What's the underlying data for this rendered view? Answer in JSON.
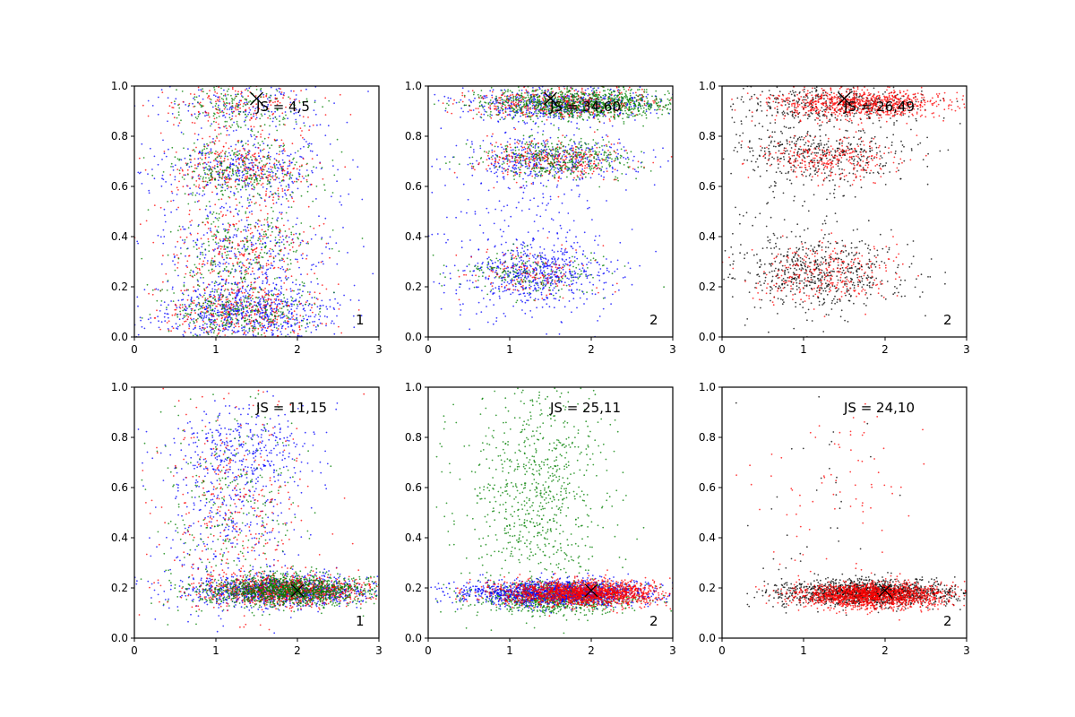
{
  "chart_data": [
    {
      "type": "scatter",
      "title": "",
      "xlabel": "",
      "ylabel": "",
      "xlim": [
        0,
        3
      ],
      "ylim": [
        0,
        1
      ],
      "xticks": [
        "0",
        "1",
        "2",
        "3"
      ],
      "yticks": [
        "0.0",
        "0.2",
        "0.4",
        "0.6",
        "0.8",
        "1.0"
      ],
      "grid": false,
      "annotation": "JS = 4,5",
      "index_label": "1",
      "marker_x": {
        "x": 1.5,
        "y": 0.95
      },
      "series": [
        {
          "color": "#0000ff",
          "points_approx": 1600,
          "clusters": [
            {
              "cx": 1.35,
              "cy": 0.1,
              "sx": 0.55,
              "sy": 0.06,
              "frac": 0.45
            },
            {
              "cx": 1.35,
              "cy": 0.35,
              "sx": 0.55,
              "sy": 0.08,
              "frac": 0.15
            },
            {
              "cx": 1.35,
              "cy": 0.66,
              "sx": 0.55,
              "sy": 0.06,
              "frac": 0.2
            },
            {
              "cx": 1.3,
              "cy": 0.92,
              "sx": 0.5,
              "sy": 0.05,
              "frac": 0.1
            },
            {
              "cx": 1.4,
              "cy": 0.5,
              "sx": 0.6,
              "sy": 0.3,
              "frac": 0.1
            }
          ]
        },
        {
          "color": "#ff0000",
          "points_approx": 1100,
          "clusters": [
            {
              "cx": 1.3,
              "cy": 0.1,
              "sx": 0.45,
              "sy": 0.06,
              "frac": 0.3
            },
            {
              "cx": 1.3,
              "cy": 0.35,
              "sx": 0.45,
              "sy": 0.08,
              "frac": 0.2
            },
            {
              "cx": 1.3,
              "cy": 0.66,
              "sx": 0.45,
              "sy": 0.06,
              "frac": 0.25
            },
            {
              "cx": 1.3,
              "cy": 0.92,
              "sx": 0.45,
              "sy": 0.05,
              "frac": 0.15
            },
            {
              "cx": 1.3,
              "cy": 0.5,
              "sx": 0.55,
              "sy": 0.3,
              "frac": 0.1
            }
          ]
        },
        {
          "color": "#008000",
          "points_approx": 1100,
          "clusters": [
            {
              "cx": 1.3,
              "cy": 0.1,
              "sx": 0.45,
              "sy": 0.06,
              "frac": 0.3
            },
            {
              "cx": 1.3,
              "cy": 0.35,
              "sx": 0.45,
              "sy": 0.08,
              "frac": 0.2
            },
            {
              "cx": 1.3,
              "cy": 0.66,
              "sx": 0.45,
              "sy": 0.06,
              "frac": 0.25
            },
            {
              "cx": 1.3,
              "cy": 0.92,
              "sx": 0.45,
              "sy": 0.05,
              "frac": 0.15
            },
            {
              "cx": 1.3,
              "cy": 0.5,
              "sx": 0.55,
              "sy": 0.3,
              "frac": 0.1
            }
          ]
        }
      ]
    },
    {
      "type": "scatter",
      "title": "",
      "xlabel": "",
      "ylabel": "",
      "xlim": [
        0,
        3
      ],
      "ylim": [
        0,
        1
      ],
      "xticks": [
        "0",
        "1",
        "2",
        "3"
      ],
      "yticks": [
        "0.0",
        "0.2",
        "0.4",
        "0.6",
        "0.8",
        "1.0"
      ],
      "grid": false,
      "annotation": "JS = 34,60",
      "index_label": "2",
      "marker_x": {
        "x": 1.5,
        "y": 0.95
      },
      "series": [
        {
          "color": "#0000ff",
          "points_approx": 1700,
          "clusters": [
            {
              "cx": 1.3,
              "cy": 0.25,
              "sx": 0.45,
              "sy": 0.06,
              "frac": 0.3
            },
            {
              "cx": 1.5,
              "cy": 0.71,
              "sx": 0.5,
              "sy": 0.04,
              "frac": 0.2
            },
            {
              "cx": 1.6,
              "cy": 0.93,
              "sx": 0.6,
              "sy": 0.03,
              "frac": 0.3
            },
            {
              "cx": 1.2,
              "cy": 0.5,
              "sx": 0.6,
              "sy": 0.3,
              "frac": 0.2
            }
          ]
        },
        {
          "color": "#ff0000",
          "points_approx": 900,
          "clusters": [
            {
              "cx": 1.3,
              "cy": 0.25,
              "sx": 0.4,
              "sy": 0.05,
              "frac": 0.15
            },
            {
              "cx": 1.5,
              "cy": 0.71,
              "sx": 0.45,
              "sy": 0.04,
              "frac": 0.35
            },
            {
              "cx": 1.6,
              "cy": 0.93,
              "sx": 0.55,
              "sy": 0.03,
              "frac": 0.5
            }
          ]
        },
        {
          "color": "#008000",
          "points_approx": 1600,
          "clusters": [
            {
              "cx": 1.3,
              "cy": 0.25,
              "sx": 0.45,
              "sy": 0.05,
              "frac": 0.12
            },
            {
              "cx": 1.6,
              "cy": 0.71,
              "sx": 0.5,
              "sy": 0.04,
              "frac": 0.25
            },
            {
              "cx": 1.9,
              "cy": 0.93,
              "sx": 0.6,
              "sy": 0.03,
              "frac": 0.63
            }
          ]
        }
      ]
    },
    {
      "type": "scatter",
      "title": "",
      "xlabel": "",
      "ylabel": "",
      "xlim": [
        0,
        3
      ],
      "ylim": [
        0,
        1
      ],
      "xticks": [
        "0",
        "1",
        "2",
        "3"
      ],
      "yticks": [
        "0.0",
        "0.2",
        "0.4",
        "0.6",
        "0.8",
        "1.0"
      ],
      "grid": false,
      "annotation": "JS = 26,49",
      "index_label": "2",
      "marker_x": {
        "x": 1.5,
        "y": 0.95
      },
      "series": [
        {
          "color": "#000000",
          "points_approx": 1500,
          "clusters": [
            {
              "cx": 1.2,
              "cy": 0.25,
              "sx": 0.55,
              "sy": 0.07,
              "frac": 0.35
            },
            {
              "cx": 1.3,
              "cy": 0.73,
              "sx": 0.55,
              "sy": 0.05,
              "frac": 0.25
            },
            {
              "cx": 1.4,
              "cy": 0.93,
              "sx": 0.6,
              "sy": 0.04,
              "frac": 0.25
            },
            {
              "cx": 1.0,
              "cy": 0.5,
              "sx": 0.5,
              "sy": 0.3,
              "frac": 0.15
            }
          ]
        },
        {
          "color": "#ff0000",
          "points_approx": 1400,
          "clusters": [
            {
              "cx": 1.3,
              "cy": 0.25,
              "sx": 0.45,
              "sy": 0.06,
              "frac": 0.2
            },
            {
              "cx": 1.3,
              "cy": 0.71,
              "sx": 0.4,
              "sy": 0.04,
              "frac": 0.2
            },
            {
              "cx": 1.7,
              "cy": 0.93,
              "sx": 0.55,
              "sy": 0.03,
              "frac": 0.6
            }
          ]
        }
      ]
    },
    {
      "type": "scatter",
      "title": "",
      "xlabel": "",
      "ylabel": "",
      "xlim": [
        0,
        3
      ],
      "ylim": [
        0,
        1
      ],
      "xticks": [
        "0",
        "1",
        "2",
        "3"
      ],
      "yticks": [
        "0.0",
        "0.2",
        "0.4",
        "0.6",
        "0.8",
        "1.0"
      ],
      "grid": false,
      "annotation": "JS = 11,15",
      "index_label": "1",
      "marker_x": {
        "x": 2.0,
        "y": 0.19
      },
      "series": [
        {
          "color": "#0000ff",
          "points_approx": 1700,
          "clusters": [
            {
              "cx": 1.8,
              "cy": 0.19,
              "sx": 0.55,
              "sy": 0.03,
              "frac": 0.6
            },
            {
              "cx": 1.4,
              "cy": 0.75,
              "sx": 0.4,
              "sy": 0.08,
              "frac": 0.15
            },
            {
              "cx": 1.2,
              "cy": 0.5,
              "sx": 0.5,
              "sy": 0.25,
              "frac": 0.25
            }
          ]
        },
        {
          "color": "#ff0000",
          "points_approx": 1300,
          "clusters": [
            {
              "cx": 1.9,
              "cy": 0.19,
              "sx": 0.5,
              "sy": 0.03,
              "frac": 0.75
            },
            {
              "cx": 1.2,
              "cy": 0.5,
              "sx": 0.5,
              "sy": 0.25,
              "frac": 0.25
            }
          ]
        },
        {
          "color": "#008000",
          "points_approx": 1500,
          "clusters": [
            {
              "cx": 1.9,
              "cy": 0.19,
              "sx": 0.5,
              "sy": 0.03,
              "frac": 0.8
            },
            {
              "cx": 1.2,
              "cy": 0.5,
              "sx": 0.5,
              "sy": 0.25,
              "frac": 0.2
            }
          ]
        }
      ]
    },
    {
      "type": "scatter",
      "title": "",
      "xlabel": "",
      "ylabel": "",
      "xlim": [
        0,
        3
      ],
      "ylim": [
        0,
        1
      ],
      "xticks": [
        "0",
        "1",
        "2",
        "3"
      ],
      "yticks": [
        "0.0",
        "0.2",
        "0.4",
        "0.6",
        "0.8",
        "1.0"
      ],
      "grid": false,
      "annotation": "JS = 25,11",
      "index_label": "2",
      "marker_x": {
        "x": 2.0,
        "y": 0.19
      },
      "series": [
        {
          "color": "#008000",
          "points_approx": 1700,
          "clusters": [
            {
              "cx": 1.6,
              "cy": 0.16,
              "sx": 0.5,
              "sy": 0.03,
              "frac": 0.55
            },
            {
              "cx": 1.3,
              "cy": 0.6,
              "sx": 0.45,
              "sy": 0.22,
              "frac": 0.45
            }
          ]
        },
        {
          "color": "#0000ff",
          "points_approx": 1400,
          "clusters": [
            {
              "cx": 1.6,
              "cy": 0.18,
              "sx": 0.6,
              "sy": 0.025,
              "frac": 1.0
            }
          ]
        },
        {
          "color": "#ff0000",
          "points_approx": 1600,
          "clusters": [
            {
              "cx": 1.9,
              "cy": 0.18,
              "sx": 0.5,
              "sy": 0.025,
              "frac": 1.0
            }
          ]
        }
      ]
    },
    {
      "type": "scatter",
      "title": "",
      "xlabel": "",
      "ylabel": "",
      "xlim": [
        0,
        3
      ],
      "ylim": [
        0,
        1
      ],
      "xticks": [
        "0",
        "1",
        "2",
        "3"
      ],
      "yticks": [
        "0.0",
        "0.2",
        "0.4",
        "0.6",
        "0.8",
        "1.0"
      ],
      "grid": false,
      "annotation": "JS = 24,10",
      "index_label": "2",
      "marker_x": {
        "x": 2.0,
        "y": 0.19
      },
      "series": [
        {
          "color": "#000000",
          "points_approx": 1400,
          "clusters": [
            {
              "cx": 1.8,
              "cy": 0.18,
              "sx": 0.55,
              "sy": 0.025,
              "frac": 0.97
            },
            {
              "cx": 1.2,
              "cy": 0.5,
              "sx": 0.5,
              "sy": 0.25,
              "frac": 0.03
            }
          ]
        },
        {
          "color": "#ff0000",
          "points_approx": 1600,
          "clusters": [
            {
              "cx": 1.85,
              "cy": 0.17,
              "sx": 0.45,
              "sy": 0.025,
              "frac": 0.95
            },
            {
              "cx": 1.4,
              "cy": 0.6,
              "sx": 0.5,
              "sy": 0.22,
              "frac": 0.05
            }
          ]
        }
      ]
    }
  ]
}
